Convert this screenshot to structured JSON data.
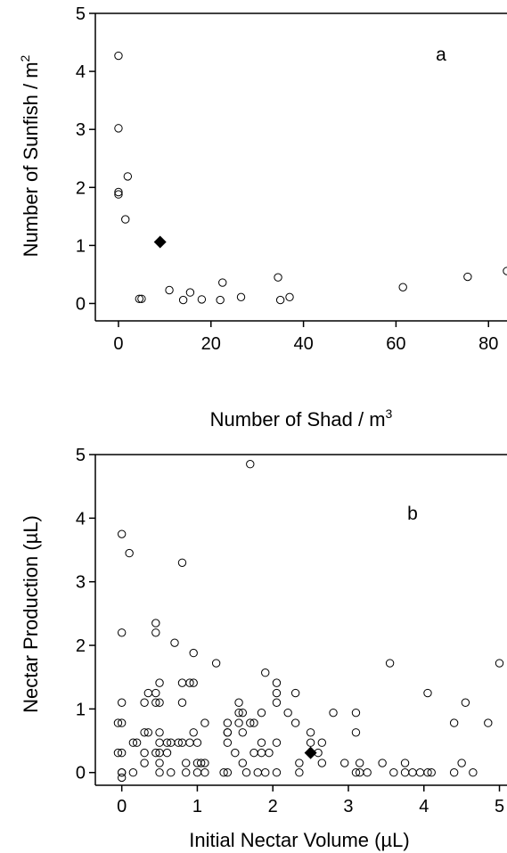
{
  "chart_data": [
    {
      "type": "scatter",
      "panel_label": "a",
      "xlabel_main": "Number of Shad / m",
      "xlabel_sup": "3",
      "ylabel_main": "Number of Sunfish / m",
      "ylabel_sup": "2",
      "xlim": [
        -5,
        84
      ],
      "ylim": [
        -0.3,
        5
      ],
      "xticks": [
        0,
        20,
        40,
        60,
        80
      ],
      "xtick_labels": [
        "0",
        "20",
        "40",
        "60",
        "80"
      ],
      "yticks": [
        0,
        1,
        2,
        3,
        4,
        5
      ],
      "ytick_labels": [
        "0",
        "1",
        "2",
        "3",
        "4",
        "5"
      ],
      "series": [
        {
          "marker": "open-circle",
          "x": [
            0,
            0,
            0,
            0,
            1.5,
            2,
            4.5,
            5,
            11,
            14,
            15.5,
            18,
            22,
            22.5,
            26.5,
            34.5,
            35,
            37,
            61.5,
            75.5,
            84
          ],
          "y": [
            4.27,
            3.02,
            1.92,
            1.88,
            1.45,
            2.19,
            0.08,
            0.08,
            0.23,
            0.06,
            0.19,
            0.07,
            0.06,
            0.36,
            0.11,
            0.45,
            0.06,
            0.11,
            0.28,
            0.46,
            0.56
          ]
        },
        {
          "marker": "filled-diamond",
          "x": [
            9
          ],
          "y": [
            1.06
          ]
        }
      ]
    },
    {
      "type": "scatter",
      "panel_label": "b",
      "xlabel_main": "Initial Nectar Volume (µL)",
      "ylabel_main": "Nectar Production (µL)",
      "xlim": [
        -0.35,
        5.1
      ],
      "ylim": [
        -0.2,
        5
      ],
      "xticks": [
        0,
        1,
        2,
        3,
        4,
        5
      ],
      "xtick_labels": [
        "0",
        "1",
        "2",
        "3",
        "4",
        "5"
      ],
      "yticks": [
        0,
        1,
        2,
        3,
        4,
        5
      ],
      "ytick_labels": [
        "0",
        "1",
        "2",
        "3",
        "4",
        "5"
      ],
      "series": [
        {
          "marker": "open-circle",
          "x": [
            0,
            0,
            0,
            0,
            0,
            0,
            0,
            0,
            -0.05,
            -0.05,
            0.15,
            0.1,
            0.15,
            0.2,
            0.3,
            0.3,
            0.3,
            0.3,
            0.35,
            0.35,
            0.45,
            0.45,
            0.45,
            0.45,
            0.45,
            0.5,
            0.5,
            0.5,
            0.5,
            0.5,
            0.5,
            0.5,
            0.6,
            0.6,
            0.65,
            0.65,
            0.7,
            0.75,
            0.8,
            0.8,
            0.8,
            0.8,
            0.85,
            0.85,
            0.9,
            0.9,
            0.95,
            0.95,
            0.95,
            1,
            1,
            1,
            1.05,
            1.1,
            1.1,
            1.1,
            1.25,
            1.35,
            1.4,
            1.4,
            1.4,
            1.4,
            1.4,
            1.5,
            1.55,
            1.55,
            1.55,
            1.6,
            1.6,
            1.6,
            1.65,
            1.7,
            1.7,
            1.75,
            1.75,
            1.8,
            1.85,
            1.85,
            1.85,
            1.9,
            1.9,
            1.95,
            2.05,
            2.05,
            2.05,
            2.05,
            2.05,
            2.2,
            2.3,
            2.3,
            2.35,
            2.35,
            2.5,
            2.5,
            2.6,
            2.65,
            2.65,
            2.8,
            2.95,
            3.1,
            3.1,
            3.1,
            3.15,
            3.15,
            3.25,
            3.45,
            3.55,
            3.6,
            3.75,
            3.75,
            3.85,
            3.95,
            4.05,
            4.05,
            4.1,
            4.4,
            4.4,
            4.5,
            4.55,
            4.65,
            4.85,
            5
          ],
          "y": [
            0,
            0,
            0.31,
            0.78,
            1.1,
            2.2,
            3.75,
            -0.08,
            0.31,
            0.78,
            0.47,
            3.45,
            0,
            0.47,
            0.63,
            0.31,
            0.15,
            1.1,
            1.25,
            0.63,
            0.31,
            2.2,
            2.35,
            1.25,
            1.1,
            0,
            0.15,
            0.31,
            0.47,
            0.63,
            1.1,
            1.41,
            0.47,
            0.31,
            0,
            0.47,
            2.04,
            0.47,
            3.3,
            1.1,
            1.41,
            0.47,
            0,
            0.15,
            0.47,
            1.41,
            0.63,
            1.41,
            1.88,
            0,
            0.47,
            0.15,
            0.15,
            0.78,
            0.15,
            0,
            1.72,
            0,
            0,
            0.47,
            0.63,
            0.78,
            0.63,
            0.31,
            0.78,
            1.1,
            0.94,
            0.15,
            0.63,
            0.94,
            0,
            0.78,
            4.85,
            0.31,
            0.78,
            0,
            0.31,
            0.47,
            0.94,
            1.57,
            0,
            0.31,
            0,
            0.47,
            1.1,
            1.25,
            1.41,
            0.94,
            0.78,
            1.25,
            0,
            0.15,
            0.47,
            0.63,
            0.31,
            0.15,
            0.47,
            0.94,
            0.15,
            0,
            0.63,
            0.94,
            0,
            0.15,
            0,
            0.15,
            1.72,
            0,
            0.15,
            0,
            0,
            0,
            0,
            1.25,
            0,
            0,
            0.78,
            0.15,
            1.1,
            0,
            0.78,
            1.72
          ]
        },
        {
          "marker": "filled-diamond",
          "x": [
            2.5
          ],
          "y": [
            0.31
          ]
        }
      ]
    }
  ]
}
